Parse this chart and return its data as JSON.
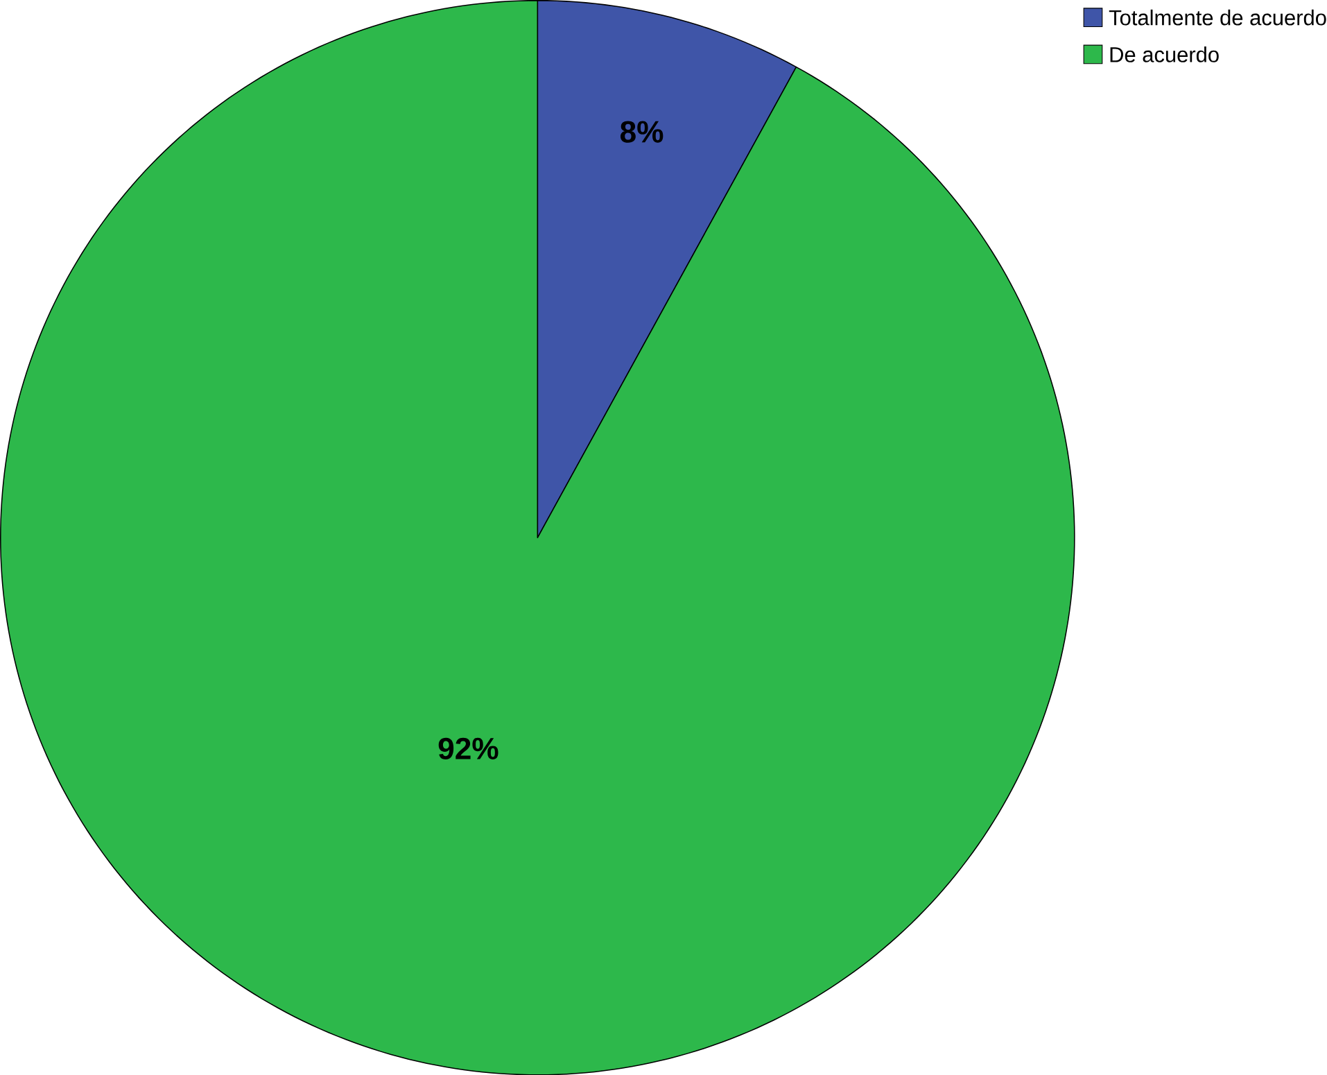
{
  "chart_data": {
    "type": "pie",
    "categories": [
      "Totalmente de acuerdo",
      "De acuerdo"
    ],
    "values": [
      8,
      92
    ],
    "colors": [
      "#3f55a8",
      "#2db84b"
    ],
    "value_labels": [
      "8%",
      "92%"
    ],
    "legend": "top right"
  }
}
